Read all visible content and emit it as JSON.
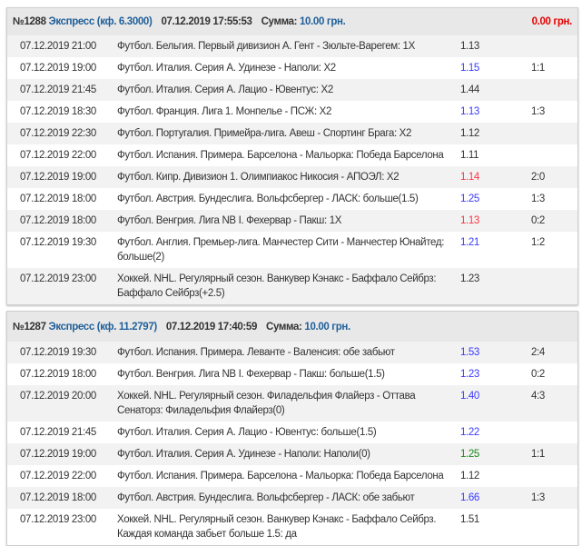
{
  "colors": {
    "default": "#333333",
    "blue": "#3a3aff",
    "red": "#ff3344",
    "green": "#1a8a1a",
    "header_blue": "#1f5f99",
    "win_red": "#e60000"
  },
  "bets": [
    {
      "number": "№1288",
      "type": "Экспресс (кф. 6.3000)",
      "datetime": "07.12.2019 17:55:53",
      "sum_label": "Сумма:",
      "sum_value": "10.00 грн.",
      "win": "0.00 грн.",
      "rows": [
        {
          "date": "07.12.2019 21:00",
          "event": "Футбол. Бельгия. Первый дивизион А. Гент - Зюльте-Варегем: 1X",
          "odds": "1.13",
          "odds_color": "default",
          "score": ""
        },
        {
          "date": "07.12.2019 19:00",
          "event": "Футбол. Италия. Серия А. Удинезе - Наполи: X2",
          "odds": "1.15",
          "odds_color": "blue",
          "score": "1:1"
        },
        {
          "date": "07.12.2019 21:45",
          "event": "Футбол. Италия. Серия А. Лацио - Ювентус: X2",
          "odds": "1.44",
          "odds_color": "default",
          "score": ""
        },
        {
          "date": "07.12.2019 18:30",
          "event": "Футбол. Франция. Лига 1. Монпелье - ПСЖ: X2",
          "odds": "1.13",
          "odds_color": "blue",
          "score": "1:3"
        },
        {
          "date": "07.12.2019 22:30",
          "event": "Футбол. Португалия. Примейра-лига. Авеш - Спортинг Брага: X2",
          "odds": "1.12",
          "odds_color": "default",
          "score": ""
        },
        {
          "date": "07.12.2019 22:00",
          "event": "Футбол. Испания. Примера. Барселона - Мальорка: Победа Барселона",
          "odds": "1.11",
          "odds_color": "default",
          "score": ""
        },
        {
          "date": "07.12.2019 19:00",
          "event": "Футбол. Кипр. Дивизион 1. Олимпиакос Никосия - АПОЭЛ: X2",
          "odds": "1.14",
          "odds_color": "red",
          "score": "2:0"
        },
        {
          "date": "07.12.2019 18:00",
          "event": "Футбол. Австрия. Бундеслига. Вольфсбергер - ЛАСК: больше(1.5)",
          "odds": "1.25",
          "odds_color": "blue",
          "score": "1:3"
        },
        {
          "date": "07.12.2019 18:00",
          "event": "Футбол. Венгрия. Лига NB I. Фехервар - Пакш: 1X",
          "odds": "1.13",
          "odds_color": "red",
          "score": "0:2"
        },
        {
          "date": "07.12.2019 19:30",
          "event": "Футбол. Англия. Премьер-лига. Манчестер Сити - Манчестер Юнайтед: больше(2)",
          "odds": "1.21",
          "odds_color": "blue",
          "score": "1:2"
        },
        {
          "date": "07.12.2019 23:00",
          "event": "Хоккей. NHL. Регулярный сезон. Ванкувер Кэнакс - Баффало Сейбрз: Баффало Сейбрз(+2.5)",
          "odds": "1.23",
          "odds_color": "default",
          "score": ""
        }
      ]
    },
    {
      "number": "№1287",
      "type": "Экспресс (кф. 11.2797)",
      "datetime": "07.12.2019 17:40:59",
      "sum_label": "Сумма:",
      "sum_value": "10.00 грн.",
      "win": "",
      "rows": [
        {
          "date": "07.12.2019 19:30",
          "event": "Футбол. Испания. Примера. Леванте - Валенсия: обе забьют",
          "odds": "1.53",
          "odds_color": "blue",
          "score": "2:4"
        },
        {
          "date": "07.12.2019 18:00",
          "event": "Футбол. Венгрия. Лига NB I. Фехервар - Пакш: больше(1.5)",
          "odds": "1.23",
          "odds_color": "blue",
          "score": "0:2"
        },
        {
          "date": "07.12.2019 20:00",
          "event": "Хоккей. NHL. Регулярный сезон. Филадельфия Флайерз - Оттава Сенаторз: Филадельфия Флайерз(0)",
          "odds": "1.40",
          "odds_color": "blue",
          "score": "4:3"
        },
        {
          "date": "07.12.2019 21:45",
          "event": "Футбол. Италия. Серия А. Лацио - Ювентус: больше(1.5)",
          "odds": "1.22",
          "odds_color": "blue",
          "score": ""
        },
        {
          "date": "07.12.2019 19:00",
          "event": "Футбол. Италия. Серия А. Удинезе - Наполи: Наполи(0)",
          "odds": "1.25",
          "odds_color": "green",
          "score": "1:1"
        },
        {
          "date": "07.12.2019 22:00",
          "event": "Футбол. Испания. Примера. Барселона - Мальорка: Победа Барселона",
          "odds": "1.12",
          "odds_color": "default",
          "score": ""
        },
        {
          "date": "07.12.2019 18:00",
          "event": "Футбол. Австрия. Бундеслига. Вольфсбергер - ЛАСК: обе забьют",
          "odds": "1.66",
          "odds_color": "blue",
          "score": "1:3"
        },
        {
          "date": "07.12.2019 23:00",
          "event": "Хоккей. NHL. Регулярный сезон. Ванкувер Кэнакс - Баффало Сейбрз. Каждая команда забьет больше 1.5: да",
          "odds": "1.51",
          "odds_color": "default",
          "score": ""
        }
      ]
    }
  ]
}
